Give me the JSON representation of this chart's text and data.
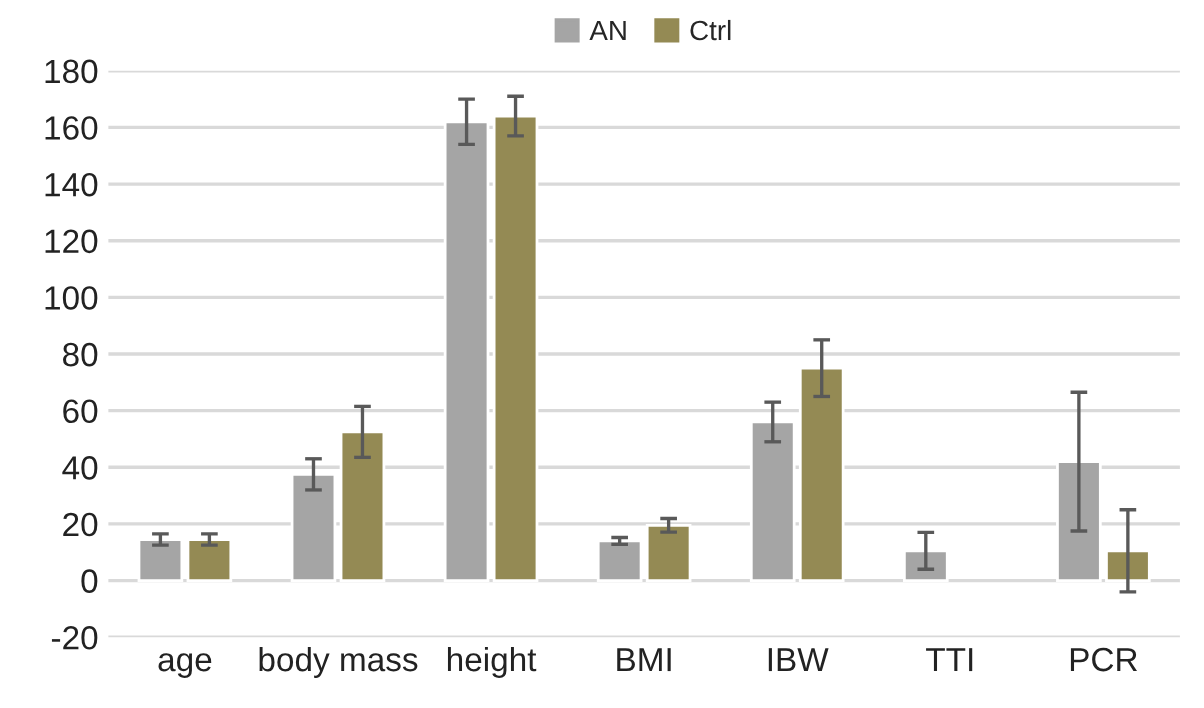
{
  "chart_data": {
    "type": "bar",
    "categories": [
      "age",
      "body mass",
      "height",
      "BMI",
      "IBW",
      "TTI",
      "PCR"
    ],
    "series": [
      {
        "name": "AN",
        "color": "#a5a5a5",
        "values": [
          14.5,
          37.5,
          162,
          14,
          56,
          10.5,
          42
        ],
        "errors": [
          2,
          5.5,
          8,
          1.2,
          7,
          6.5,
          24.5
        ]
      },
      {
        "name": "Ctrl",
        "color": "#948a54",
        "values": [
          14.5,
          52.5,
          164,
          19.5,
          75,
          null,
          10.5
        ],
        "errors": [
          2,
          9,
          7,
          2.4,
          10,
          null,
          14.5
        ]
      }
    ],
    "ylim": [
      -20,
      180
    ],
    "yticks": [
      -20,
      0,
      20,
      40,
      60,
      80,
      100,
      120,
      140,
      160,
      180
    ],
    "grid": "y",
    "legend": "top"
  }
}
